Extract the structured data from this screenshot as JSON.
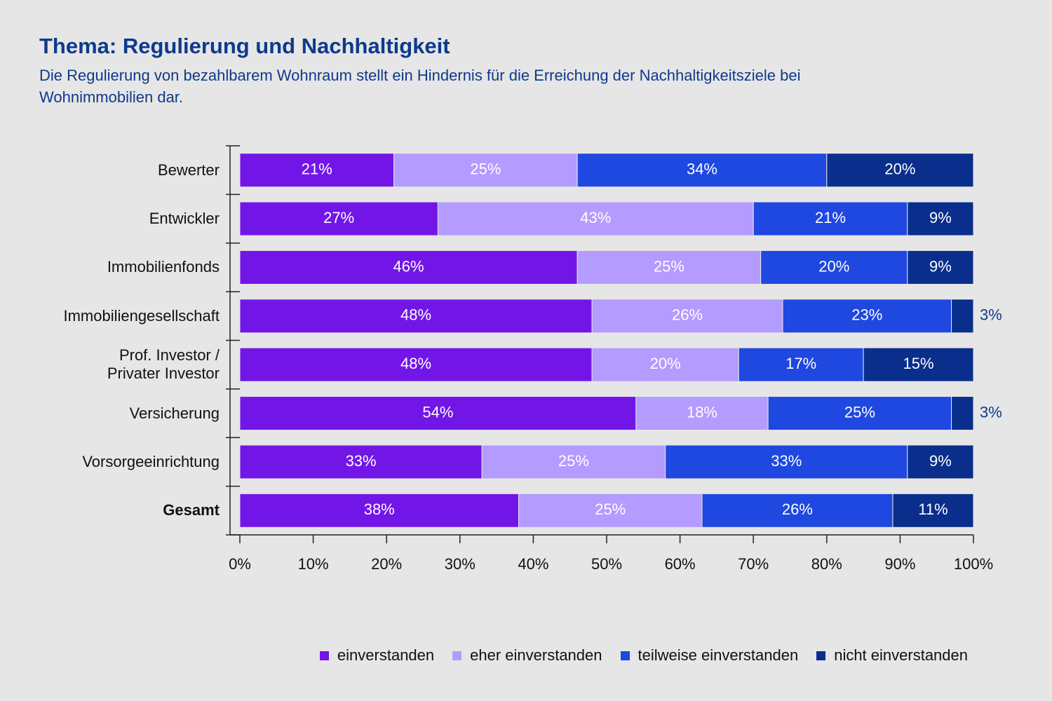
{
  "chart_data": {
    "type": "stacked_bar_horizontal",
    "title": "Thema: Regulierung und Nachhaltigkeit",
    "subtitle": "Die Regulierung von bezahlbarem Wohnraum stellt ein Hindernis für die Erreichung der Nachhaltigkeitsziele bei Wohnimmobilien dar.",
    "categories": [
      "Bewerter",
      "Entwickler",
      "Immobilienfonds",
      "Immobiliengesellschaft",
      "Prof. Investor /\nPrivater Investor",
      "Versicherung",
      "Vorsorgeeinrichtung",
      "Gesamt"
    ],
    "series": [
      {
        "name": "einverstanden",
        "color": "#7216e8",
        "values": [
          21,
          27,
          46,
          48,
          48,
          54,
          33,
          38
        ],
        "value_labels": [
          "21%",
          "27%",
          "46%",
          "48%",
          "48%",
          "54%",
          "33%",
          "38%"
        ]
      },
      {
        "name": "eher einverstanden",
        "color": "#b39bff",
        "values": [
          25,
          43,
          25,
          26,
          20,
          18,
          25,
          25
        ],
        "value_labels": [
          "25%",
          "43%",
          "25%",
          "26%",
          "20%",
          "18%",
          "25%",
          "25%"
        ]
      },
      {
        "name": "teilweise einverstanden",
        "color": "#1f48e0",
        "values": [
          34,
          21,
          20,
          23,
          17,
          25,
          33,
          26
        ],
        "value_labels": [
          "34%",
          "21%",
          "20%",
          "23%",
          "17%",
          "25%",
          "33%",
          "26%"
        ]
      },
      {
        "name": "nicht einverstanden",
        "color": "#0a2e8c",
        "values": [
          20,
          9,
          9,
          3,
          15,
          3,
          9,
          11
        ],
        "value_labels": [
          "20%",
          "9%",
          "9%",
          "3%",
          "15%",
          "3%",
          "9%",
          "11%"
        ]
      }
    ],
    "xlim": [
      0,
      100
    ],
    "xticks": [
      {
        "value": 0,
        "label": "0%"
      },
      {
        "value": 10,
        "label": "10%"
      },
      {
        "value": 20,
        "label": "20%"
      },
      {
        "value": 30,
        "label": "30%"
      },
      {
        "value": 40,
        "label": "40%"
      },
      {
        "value": 50,
        "label": "50%"
      },
      {
        "value": 60,
        "label": "60%"
      },
      {
        "value": 70,
        "label": "70%"
      },
      {
        "value": 80,
        "label": "80%"
      },
      {
        "value": 90,
        "label": "90%"
      },
      {
        "value": 100,
        "label": "100%"
      }
    ],
    "legend": "bottom-right"
  }
}
